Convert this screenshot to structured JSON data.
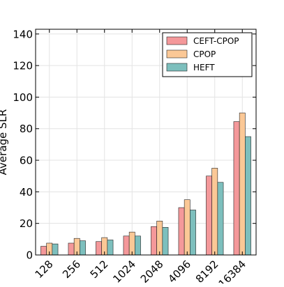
{
  "chart_data": {
    "type": "bar",
    "title": "",
    "xlabel": "",
    "ylabel": "Average SLR",
    "categories": [
      "128",
      "256",
      "512",
      "1024",
      "2048",
      "4096",
      "8192",
      "16384"
    ],
    "series": [
      {
        "name": "CEFT-CPOP",
        "color": "#f4989a",
        "values": [
          5.5,
          7.5,
          8.5,
          12,
          18,
          30,
          50,
          84.5
        ]
      },
      {
        "name": "CPOP",
        "color": "#fbc896",
        "values": [
          7.5,
          10.5,
          11,
          14.5,
          21.5,
          35,
          55,
          90
        ]
      },
      {
        "name": "HEFT",
        "color": "#7dbfbd",
        "values": [
          7,
          9,
          9.5,
          12,
          17.5,
          28.5,
          46,
          75
        ]
      }
    ],
    "ylim": [
      0,
      143
    ],
    "yticks": [
      0,
      20,
      40,
      60,
      80,
      100,
      120,
      140
    ],
    "grid": true,
    "legend_position": "top-right"
  }
}
